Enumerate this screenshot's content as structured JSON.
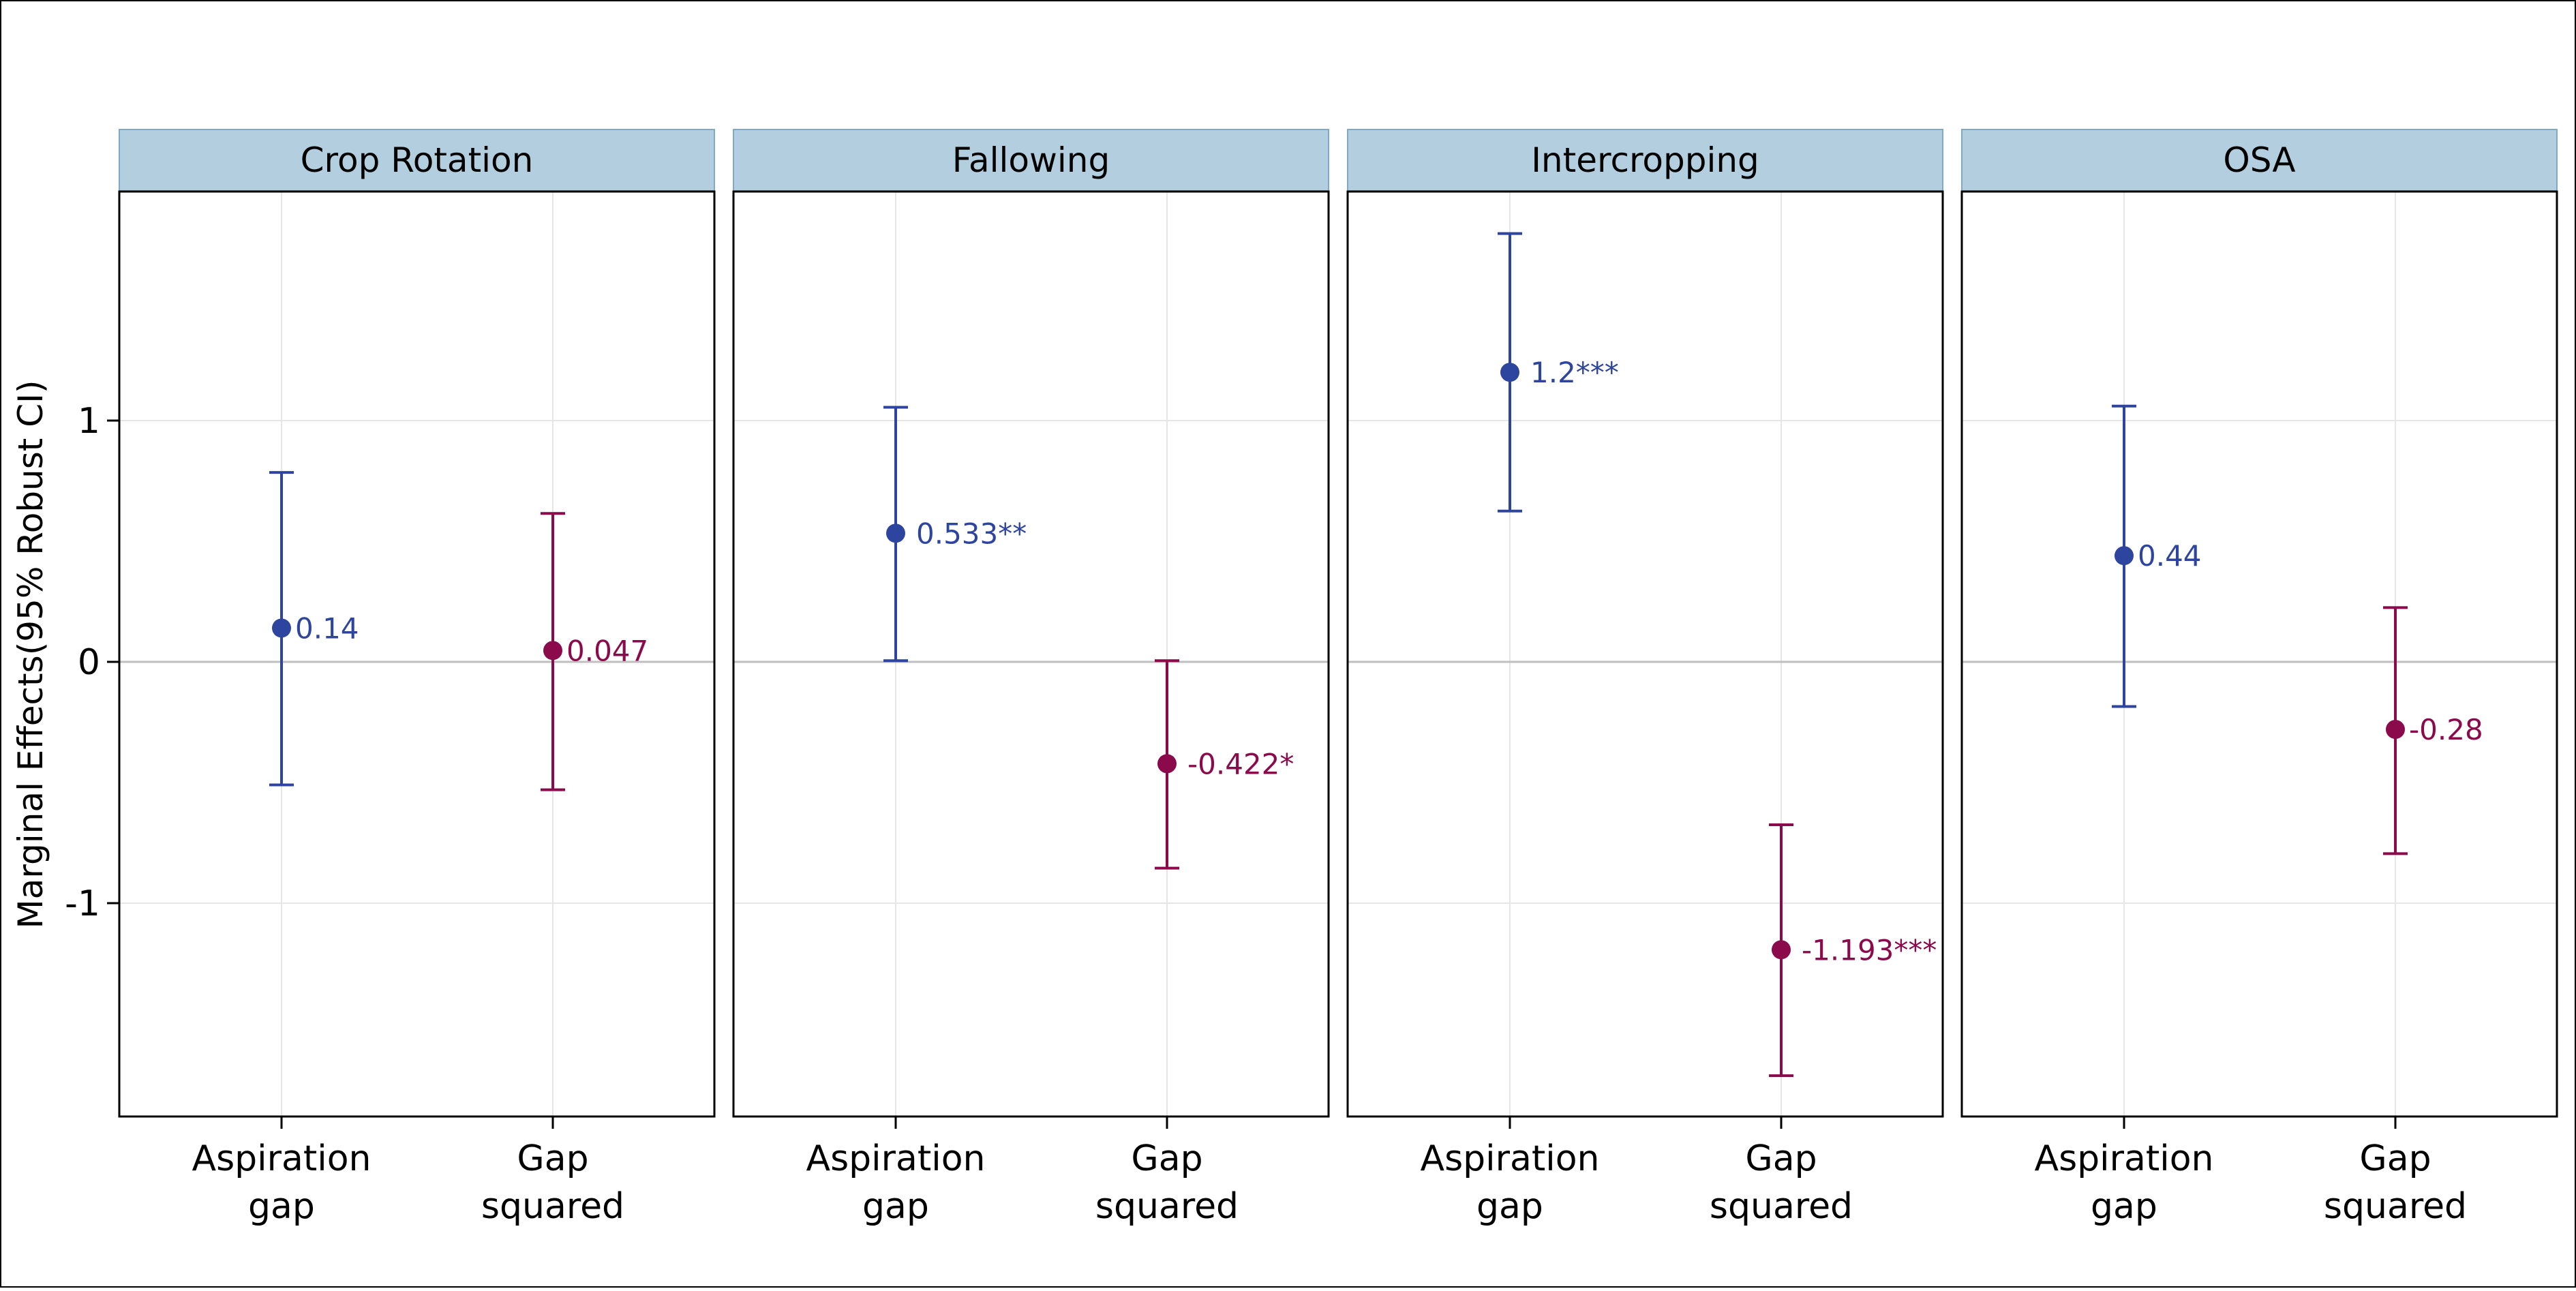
{
  "chart_data": {
    "type": "errorbar",
    "ylabel": "Marginal Effects(95% Robust CI)",
    "xlabel": "",
    "ylim": [
      -1.9,
      1.95
    ],
    "y_ticks": [
      1,
      0,
      -1
    ],
    "y_tick_labels": [
      "1",
      "0",
      "-1"
    ],
    "grid": true,
    "zero_line": true,
    "categories": [
      "Aspiration gap",
      "Gap squared"
    ],
    "category_lines": [
      [
        "Aspiration",
        "gap"
      ],
      [
        "Gap",
        "squared"
      ]
    ],
    "colors": {
      "Aspiration gap": "#2e45a0",
      "Gap squared": "#8b0a4b"
    },
    "panels": [
      {
        "title": "Crop Rotation",
        "points": [
          {
            "category": "Aspiration gap",
            "estimate": 0.14,
            "ci_low": -0.51,
            "ci_high": 0.785,
            "label": "0.14"
          },
          {
            "category": "Gap squared",
            "estimate": 0.047,
            "ci_low": -0.53,
            "ci_high": 0.615,
            "label": "0.047"
          }
        ]
      },
      {
        "title": "Fallowing",
        "points": [
          {
            "category": "Aspiration gap",
            "estimate": 0.533,
            "ci_low": 0.005,
            "ci_high": 1.055,
            "label": "0.533**"
          },
          {
            "category": "Gap squared",
            "estimate": -0.422,
            "ci_low": -0.855,
            "ci_high": 0.005,
            "label": "-0.422*"
          }
        ]
      },
      {
        "title": "Intercropping",
        "points": [
          {
            "category": "Aspiration gap",
            "estimate": 1.2,
            "ci_low": 0.625,
            "ci_high": 1.775,
            "label": "1.2***"
          },
          {
            "category": "Gap squared",
            "estimate": -1.193,
            "ci_low": -1.715,
            "ci_high": -0.675,
            "label": "-1.193***"
          }
        ]
      },
      {
        "title": "OSA",
        "points": [
          {
            "category": "Aspiration gap",
            "estimate": 0.44,
            "ci_low": -0.185,
            "ci_high": 1.06,
            "label": "0.44"
          },
          {
            "category": "Gap squared",
            "estimate": -0.28,
            "ci_low": -0.795,
            "ci_high": 0.225,
            "label": "-0.28"
          }
        ]
      }
    ]
  },
  "style": {
    "strip_fill": "#b3cede",
    "strip_border": "#7fa9c4",
    "panel_border": "#000000",
    "grid_color": "#e6e6e6",
    "zero_line_color": "#bfbfbf"
  }
}
